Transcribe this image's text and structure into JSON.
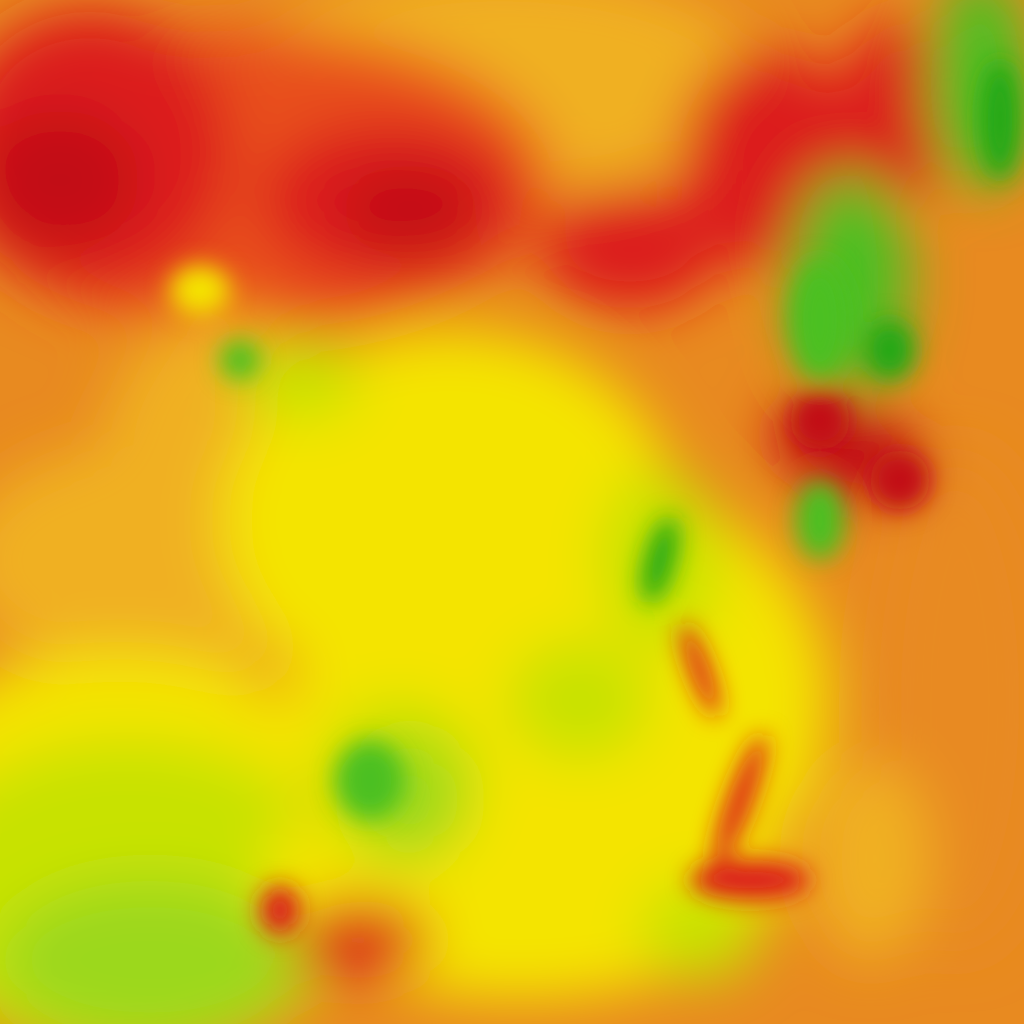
{
  "map": {
    "type": "heatmap",
    "palette": {
      "dark_red": "#c20818",
      "red": "#dc1c1c",
      "red_orange": "#e8501c",
      "orange": "#e88a20",
      "amber": "#f0b020",
      "yellow": "#f4e400",
      "yellow_green": "#c8e200",
      "light_green": "#9cd81a",
      "green": "#4cc020",
      "dark_green": "#20a818"
    }
  }
}
